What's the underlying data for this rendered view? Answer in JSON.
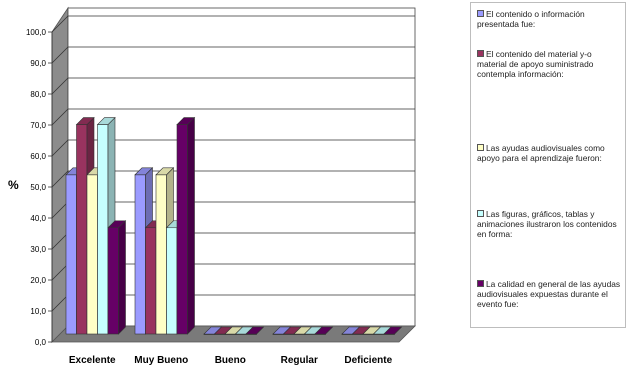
{
  "chart_data": {
    "type": "bar",
    "title": "",
    "xlabel": "",
    "ylabel": "%",
    "ylim": [
      0,
      100
    ],
    "y_ticks": [
      "0,0",
      "10,0",
      "20,0",
      "30,0",
      "40,0",
      "50,0",
      "60,0",
      "70,0",
      "80,0",
      "90,0",
      "100,0"
    ],
    "categories": [
      "Excelente",
      "Muy Bueno",
      "Bueno",
      "Regular",
      "Deficiente"
    ],
    "series": [
      {
        "name": "El contenido o información presentada fue:",
        "color": "#9b9bff",
        "values": [
          51.7,
          51.7,
          0,
          0,
          0
        ]
      },
      {
        "name": "El contenido del material y-o material de apoyo suministrado contempla información:",
        "color": "#99335f",
        "values": [
          68.0,
          34.5,
          0,
          0,
          0
        ]
      },
      {
        "name": "Las ayudas audiovisuales como apoyo para el aprendizaje fueron:",
        "color": "#ffffc6",
        "values": [
          51.7,
          51.7,
          0,
          0,
          0
        ]
      },
      {
        "name": "Las figuras, gráficos, tablas y animaciones ilustraron los contenidos en forma:",
        "color": "#c6ffff",
        "values": [
          68.0,
          34.5,
          0,
          0,
          0
        ]
      },
      {
        "name": "La calidad en general de las ayudas audiovisuales expuestas durante el evento fue:",
        "color": "#660066",
        "values": [
          34.5,
          68.0,
          0,
          0,
          0
        ]
      }
    ],
    "grid": true,
    "legend_position": "right"
  }
}
